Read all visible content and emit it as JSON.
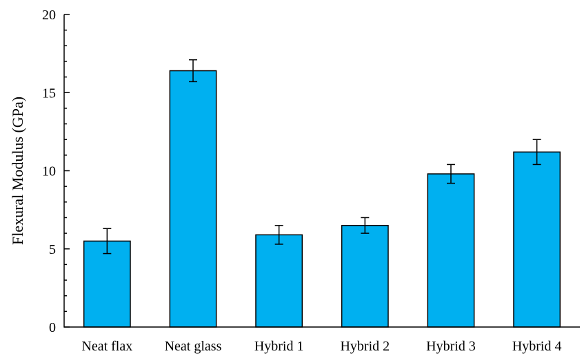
{
  "chart_data": {
    "type": "bar",
    "title": "",
    "xlabel": "",
    "ylabel": "Flexural Modulus (GPa)",
    "categories": [
      "Neat flax",
      "Neat glass",
      "Hybrid 1",
      "Hybrid 2",
      "Hybrid 3",
      "Hybrid 4"
    ],
    "values": [
      5.5,
      16.4,
      5.9,
      6.5,
      9.8,
      11.2
    ],
    "errors": [
      0.8,
      0.7,
      0.6,
      0.5,
      0.6,
      0.8
    ],
    "ylim": [
      0,
      20
    ],
    "yticks": [
      0,
      5,
      10,
      15,
      20
    ],
    "grid": false,
    "legend": "none",
    "bar_color": "#00B0F0"
  }
}
